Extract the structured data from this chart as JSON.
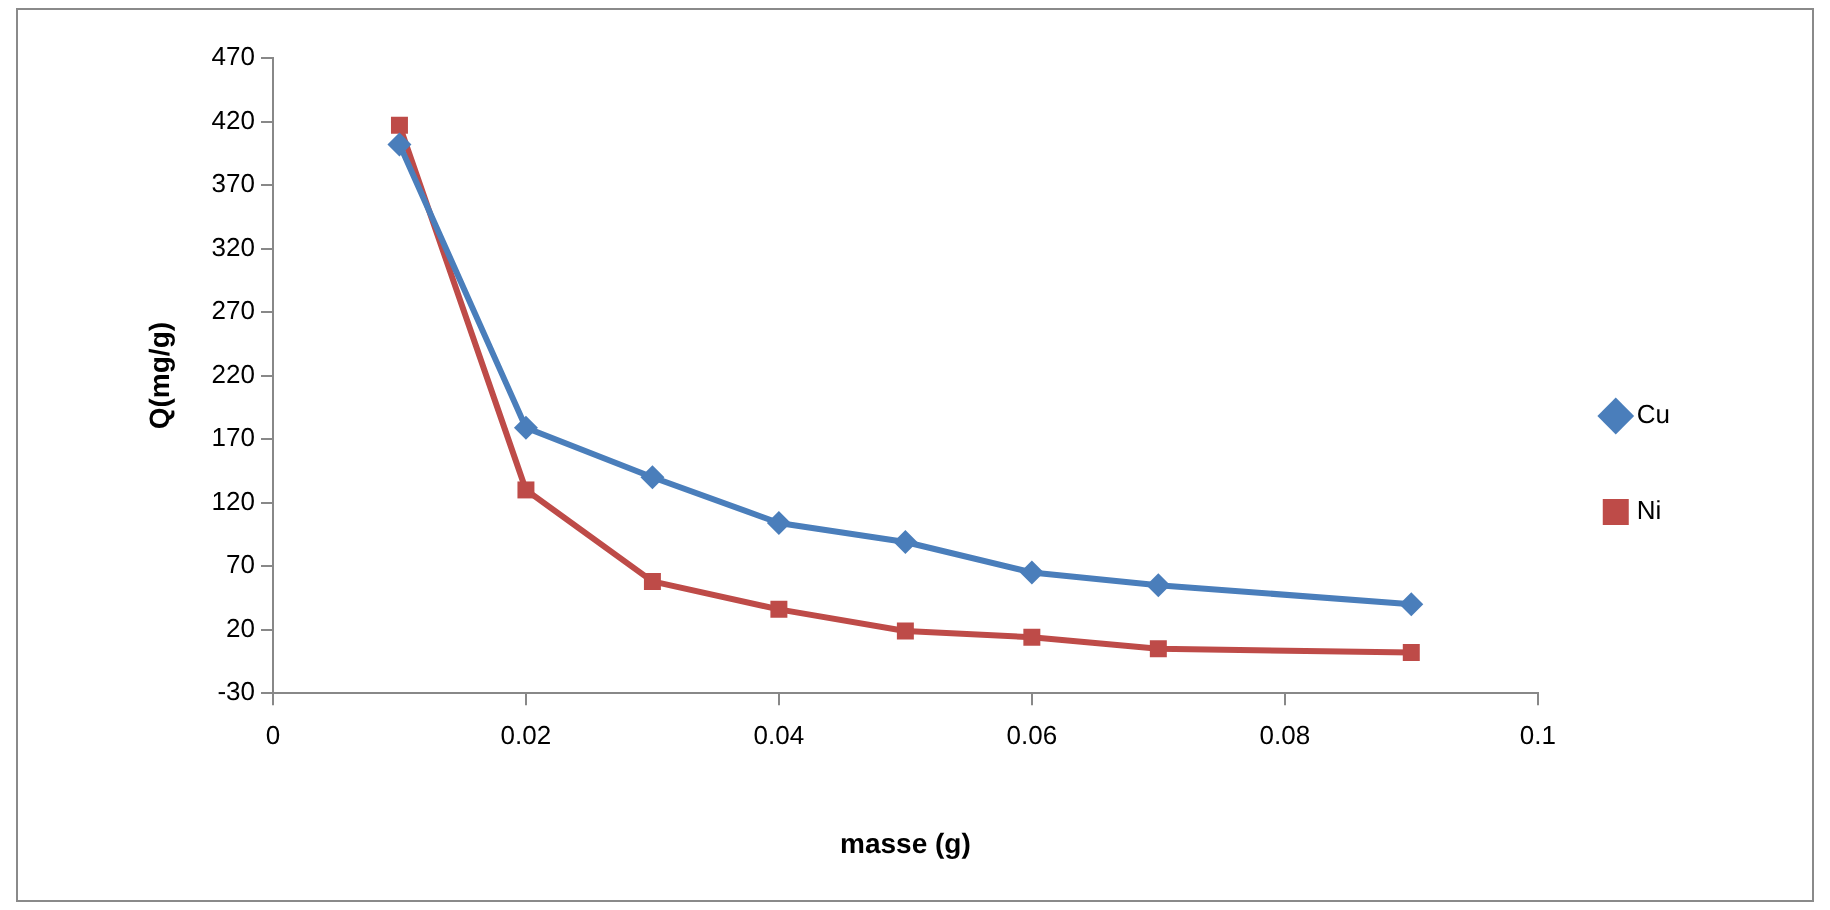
{
  "chart_data": {
    "type": "line",
    "xlabel": "masse (g)",
    "ylabel": "Q(mg/g)",
    "x": [
      0.01,
      0.02,
      0.03,
      0.04,
      0.05,
      0.06,
      0.07,
      0.09
    ],
    "series": [
      {
        "name": "Cu",
        "color": "#4a7ebb",
        "marker": "diamond",
        "values": [
          402,
          179,
          140,
          104,
          89,
          65,
          55,
          40
        ]
      },
      {
        "name": "Ni",
        "color": "#be4b48",
        "marker": "square",
        "values": [
          417,
          130,
          58,
          36,
          19,
          14,
          5,
          2
        ]
      }
    ],
    "xlim": [
      0,
      0.1
    ],
    "xticks": [
      0,
      0.02,
      0.04,
      0.06,
      0.08,
      0.1
    ],
    "ylim": [
      -30,
      470
    ],
    "yticks": [
      -30,
      20,
      70,
      120,
      170,
      220,
      270,
      320,
      370,
      420,
      470
    ],
    "grid": false,
    "legend": "right"
  }
}
